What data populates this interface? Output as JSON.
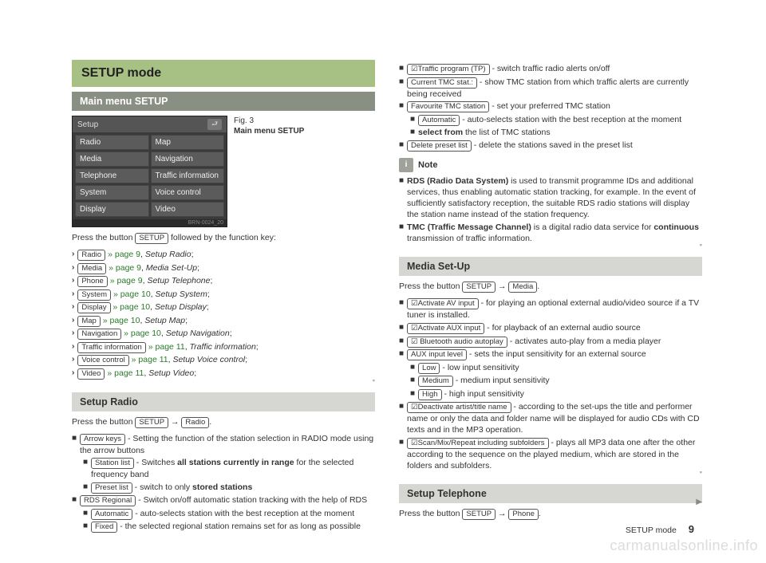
{
  "page": {
    "title": "SETUP mode",
    "footer_label": "SETUP mode",
    "footer_page": "9",
    "watermark": "carmanualsonline.info"
  },
  "sections": {
    "mainmenu": "Main menu SETUP",
    "radio": "Setup Radio",
    "media": "Media Set-Up",
    "telephone": "Setup Telephone"
  },
  "shot": {
    "title": "Setup",
    "buttons": [
      "Radio",
      "Map",
      "Media",
      "Navigation",
      "Telephone",
      "Traffic information",
      "System",
      "Voice control",
      "Display",
      "Video"
    ],
    "ref": "BRN-0024_20",
    "fig_no": "Fig. 3",
    "fig_caption": "Main menu SETUP"
  },
  "text": {
    "press_setup_fn": "Press the button ",
    "followed": " followed by the function key:",
    "press_setup_to": "Press the button ",
    "arrow": " → ",
    "period": "."
  },
  "keys": {
    "SETUP": "SETUP",
    "Radio": "Radio",
    "Media": "Media",
    "Phone": "Phone",
    "System": "System",
    "Display": "Display",
    "Map": "Map",
    "Navigation": "Navigation",
    "TrafficInfo": "Traffic information",
    "VoiceCtrl": "Voice control",
    "Video": "Video",
    "ArrowKeys": "Arrow keys",
    "StationList": "Station list",
    "PresetList": "Preset list",
    "RDSRegional": "RDS Regional",
    "Automatic": "Automatic",
    "Fixed": "Fixed",
    "TrafficTP": "☑Traffic program (TP)",
    "CurrentTMC": "Current TMC stat.:",
    "FavTMC": "Favourite TMC station",
    "DeletePreset": "Delete preset list",
    "ActivateAV": "☑Activate AV input",
    "ActivateAUX": "☑Activate AUX input",
    "BTAutoplay": "☑ Bluetooth audio autoplay",
    "AUXLevel": "AUX input level",
    "Low": "Low",
    "Medium": "Medium",
    "High": "High",
    "Deactivate": "☑Deactivate artist/title name",
    "ScanMix": "☑Scan/Mix/Repeat including subfolders"
  },
  "mainmenu_list": [
    {
      "key": "Radio",
      "pg": "» page 9",
      "desc": "Setup Radio"
    },
    {
      "key": "Media",
      "pg": "» page 9",
      "desc": "Media Set-Up"
    },
    {
      "key": "Phone",
      "pg": "» page 9",
      "desc": "Setup Telephone"
    },
    {
      "key": "System",
      "pg": "» page 10",
      "desc": "Setup System"
    },
    {
      "key": "Display",
      "pg": "» page 10",
      "desc": "Setup Display"
    },
    {
      "key": "Map",
      "pg": "» page 10",
      "desc": "Setup Map"
    },
    {
      "key": "Navigation",
      "pg": "» page 10",
      "desc": "Setup Navigation"
    },
    {
      "key": "TrafficInfo",
      "pg": "» page 11",
      "desc": "Traffic information"
    },
    {
      "key": "VoiceCtrl",
      "pg": "» page 11",
      "desc": "Setup Voice control"
    },
    {
      "key": "Video",
      "pg": "» page 11",
      "desc": "Setup Video"
    }
  ],
  "radio": {
    "b1": " - Setting the function of the station selection in RADIO mode using the arrow buttons",
    "s1a": " - Switches ",
    "s1b": "all stations currently in range",
    "s1c": " for the selected frequency band",
    "s2a": " - switch to only ",
    "s2b": "stored stations",
    "b2": " - Switch on/off automatic station tracking with the help of RDS",
    "s3": " - auto-selects station with the best reception at the moment",
    "s4": " - the selected regional station remains set for as long as possible"
  },
  "col2top": {
    "tp": " - switch traffic radio alerts on/off",
    "tmc": " - show TMC station from which traffic alerts are currently being received",
    "fav": " - set your preferred TMC station",
    "auto": " - auto-selects station with the best reception at the moment",
    "sel_pre": "select from",
    "sel": " the list of TMC stations",
    "del": " - delete the stations saved in the preset list"
  },
  "note": {
    "label": "Note",
    "l1a": "RDS (Radio Data System)",
    "l1b": " is used to transmit programme IDs and additional services, thus enabling automatic station tracking, for example. In the event of sufficiently satisfactory reception, the suitable RDS radio stations will display the station name instead of the station frequency.",
    "l2a": "TMC (Traffic Message Channel)",
    "l2b": " is a digital radio data service for ",
    "l2c": "continuous",
    "l2d": " transmission of traffic information."
  },
  "media": {
    "av": " - for playing an optional external audio/video source if a TV tuner is installed.",
    "aux": " - for playback of an external audio source",
    "bt": " - activates auto-play from a media player",
    "level": " - sets the input sensitivity for an external source",
    "low": " - low input sensitivity",
    "med": " - medium input sensitivity",
    "high": " - high input sensitivity",
    "deact": " - according to the set-ups the title and performer name or only the data and folder name will be displayed for audio CDs with CD texts and in the MP3 operation.",
    "scan": " - plays all MP3 data one after the other according to the sequence on the played medium, which are stored in the folders and subfolders."
  }
}
